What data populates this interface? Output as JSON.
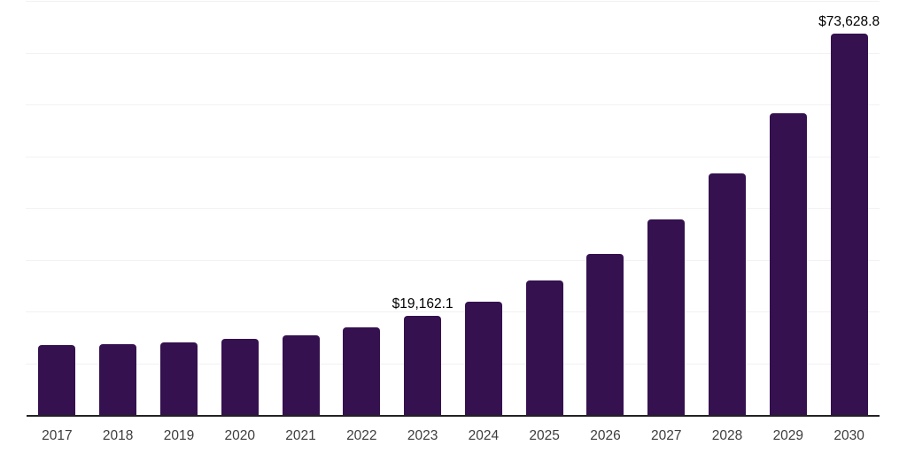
{
  "chart_data": {
    "type": "bar",
    "title": "",
    "xlabel": "",
    "ylabel": "",
    "categories": [
      "2017",
      "2018",
      "2019",
      "2020",
      "2021",
      "2022",
      "2023",
      "2024",
      "2025",
      "2026",
      "2027",
      "2028",
      "2029",
      "2030"
    ],
    "values": [
      13550,
      13670,
      14010,
      14690,
      15300,
      16960,
      19162.1,
      21950,
      25930,
      31050,
      37860,
      46660,
      58310,
      73628.8
    ],
    "data_labels": [
      "",
      "",
      "",
      "",
      "",
      "",
      "$19,162.1",
      "",
      "",
      "",
      "",
      "",
      "",
      "$73,628.8"
    ],
    "ylim": [
      0,
      80000
    ],
    "gridline_step": 10000,
    "grid": "horizontal-only",
    "legend_position": "none",
    "y_axis_tick_labels": "none",
    "colors": {
      "bar": "#35114F",
      "gridline": "#F2F2F2",
      "axis_line": "#222222",
      "tick_label": "#3D3D3D",
      "data_label": "#000000",
      "background": "#FFFFFF"
    }
  }
}
